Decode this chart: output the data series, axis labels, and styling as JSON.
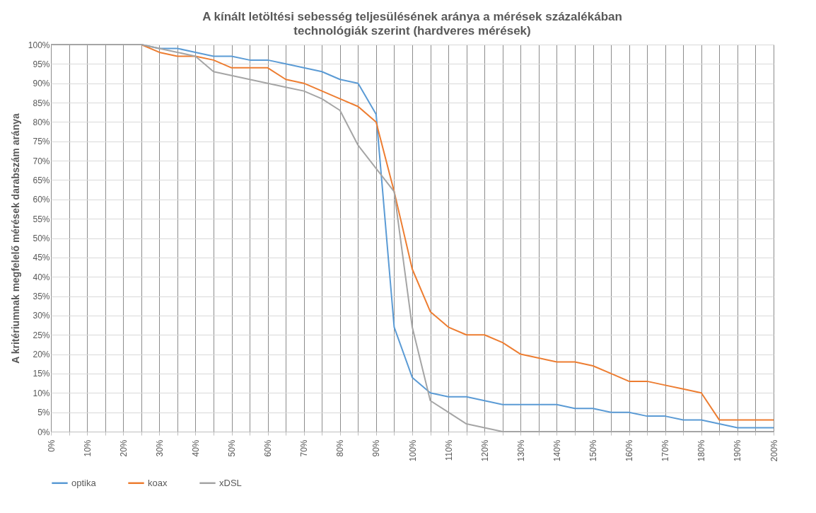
{
  "chart_data": {
    "type": "line",
    "title": "A kínált letöltési sebesség teljesülésének aránya a mérések százalékában",
    "subtitle": "technológiák szerint (hardveres mérések)",
    "ylabel": "A kritériumnak megfelelő  mérések darabszám aránya",
    "x": [
      0,
      5,
      10,
      15,
      20,
      25,
      30,
      35,
      40,
      45,
      50,
      55,
      60,
      65,
      70,
      75,
      80,
      85,
      90,
      95,
      100,
      105,
      110,
      115,
      120,
      125,
      130,
      135,
      140,
      145,
      150,
      155,
      160,
      165,
      170,
      175,
      180,
      185,
      190,
      195,
      200
    ],
    "series": [
      {
        "name": "optika",
        "color": "#5b9bd5",
        "values": [
          null,
          null,
          null,
          null,
          100,
          100,
          99,
          99,
          98,
          97,
          97,
          96,
          96,
          95,
          94,
          93,
          91,
          90,
          82,
          27,
          14,
          10,
          9,
          9,
          8,
          7,
          7,
          7,
          7,
          6,
          6,
          5,
          5,
          4,
          4,
          3,
          3,
          2,
          1,
          1,
          1
        ]
      },
      {
        "name": "koax",
        "color": "#ed7d31",
        "values": [
          null,
          null,
          null,
          null,
          100,
          100,
          98,
          97,
          97,
          96,
          94,
          94,
          94,
          91,
          90,
          88,
          86,
          84,
          80,
          62,
          42,
          31,
          27,
          25,
          25,
          23,
          20,
          19,
          18,
          18,
          17,
          15,
          13,
          13,
          12,
          11,
          10,
          3,
          3,
          3,
          3
        ]
      },
      {
        "name": "xDSL",
        "color": "#a5a5a5",
        "values": [
          100,
          100,
          100,
          100,
          100,
          100,
          99,
          98,
          97,
          93,
          92,
          91,
          90,
          89,
          88,
          86,
          83,
          74,
          68,
          62,
          27,
          8,
          5,
          2,
          1,
          0,
          0,
          0,
          0,
          0,
          0,
          0,
          0,
          0,
          0,
          0,
          0,
          0,
          0,
          0,
          0
        ]
      }
    ],
    "xlim": [
      0,
      200
    ],
    "xticks": [
      {
        "value": 0,
        "label": "0%"
      },
      {
        "value": 5,
        "label": null
      },
      {
        "value": 10,
        "label": "10%"
      },
      {
        "value": 15,
        "label": null
      },
      {
        "value": 20,
        "label": "20%"
      },
      {
        "value": 25,
        "label": null
      },
      {
        "value": 30,
        "label": "30%"
      },
      {
        "value": 35,
        "label": null
      },
      {
        "value": 40,
        "label": "40%"
      },
      {
        "value": 45,
        "label": null
      },
      {
        "value": 50,
        "label": "50%"
      },
      {
        "value": 55,
        "label": null
      },
      {
        "value": 60,
        "label": "60%"
      },
      {
        "value": 65,
        "label": null
      },
      {
        "value": 70,
        "label": "70%"
      },
      {
        "value": 75,
        "label": null
      },
      {
        "value": 80,
        "label": "80%"
      },
      {
        "value": 85,
        "label": null
      },
      {
        "value": 90,
        "label": "90%"
      },
      {
        "value": 95,
        "label": null
      },
      {
        "value": 100,
        "label": "100%"
      },
      {
        "value": 105,
        "label": null
      },
      {
        "value": 110,
        "label": "110%"
      },
      {
        "value": 115,
        "label": null
      },
      {
        "value": 120,
        "label": "120%"
      },
      {
        "value": 125,
        "label": null
      },
      {
        "value": 130,
        "label": "130%"
      },
      {
        "value": 135,
        "label": null
      },
      {
        "value": 140,
        "label": "140%"
      },
      {
        "value": 145,
        "label": null
      },
      {
        "value": 150,
        "label": "150%"
      },
      {
        "value": 155,
        "label": null
      },
      {
        "value": 160,
        "label": "160%"
      },
      {
        "value": 165,
        "label": null
      },
      {
        "value": 170,
        "label": "170%"
      },
      {
        "value": 175,
        "label": null
      },
      {
        "value": 180,
        "label": "180%"
      },
      {
        "value": 185,
        "label": null
      },
      {
        "value": 190,
        "label": "190%"
      },
      {
        "value": 195,
        "label": null
      },
      {
        "value": 200,
        "label": "200%"
      }
    ],
    "ylim": [
      0,
      100
    ],
    "yticks": [
      {
        "value": 0,
        "label": "0%"
      },
      {
        "value": 5,
        "label": "5%"
      },
      {
        "value": 10,
        "label": "10%"
      },
      {
        "value": 15,
        "label": "15%"
      },
      {
        "value": 20,
        "label": "20%"
      },
      {
        "value": 25,
        "label": "25%"
      },
      {
        "value": 30,
        "label": "30%"
      },
      {
        "value": 35,
        "label": "35%"
      },
      {
        "value": 40,
        "label": "40%"
      },
      {
        "value": 45,
        "label": "45%"
      },
      {
        "value": 50,
        "label": "50%"
      },
      {
        "value": 55,
        "label": "55%"
      },
      {
        "value": 60,
        "label": "60%"
      },
      {
        "value": 65,
        "label": "65%"
      },
      {
        "value": 70,
        "label": "70%"
      },
      {
        "value": 75,
        "label": "75%"
      },
      {
        "value": 80,
        "label": "80%"
      },
      {
        "value": 85,
        "label": "85%"
      },
      {
        "value": 90,
        "label": "90%"
      },
      {
        "value": 95,
        "label": "95%"
      },
      {
        "value": 100,
        "label": "100%"
      }
    ],
    "grid": true,
    "legend": "bottom",
    "marker": "none",
    "line_style": "solid"
  }
}
